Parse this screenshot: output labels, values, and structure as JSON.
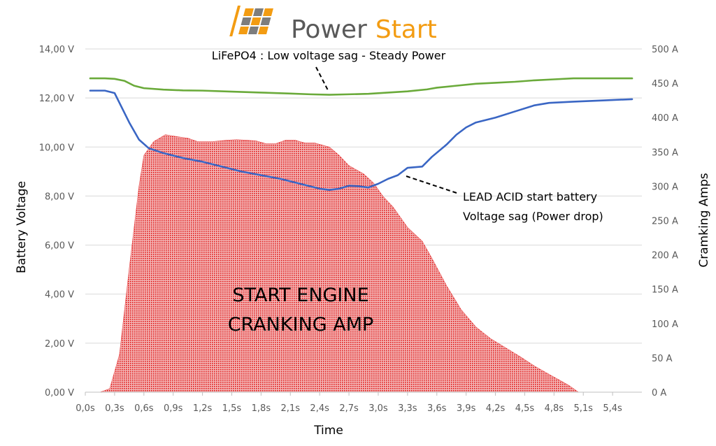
{
  "brand": {
    "name_part1": "Power",
    "name_part2": "Start",
    "name_part1_color": "#595959",
    "name_part2_color": "#f39c12",
    "icon": "grid-logo-icon"
  },
  "chart_data": {
    "type": "line+area",
    "xlabel": "Time",
    "ylabel_left": "Battery Voltage",
    "ylabel_right": "Cramking Amps",
    "x_range": [
      0,
      5.7
    ],
    "ylim_left": [
      0,
      14
    ],
    "ylim_right": [
      0,
      500
    ],
    "x_ticks": [
      {
        "v": 0.0,
        "label": "0,0s"
      },
      {
        "v": 0.3,
        "label": "0,3s"
      },
      {
        "v": 0.6,
        "label": "0,6s"
      },
      {
        "v": 0.9,
        "label": "0,9s"
      },
      {
        "v": 1.2,
        "label": "1,2s"
      },
      {
        "v": 1.5,
        "label": "1,5s"
      },
      {
        "v": 1.8,
        "label": "1,8s"
      },
      {
        "v": 2.1,
        "label": "2,1s"
      },
      {
        "v": 2.4,
        "label": "2,4s"
      },
      {
        "v": 2.7,
        "label": "2,7s"
      },
      {
        "v": 3.0,
        "label": "3,0s"
      },
      {
        "v": 3.3,
        "label": "3,3s"
      },
      {
        "v": 3.6,
        "label": "3,6s"
      },
      {
        "v": 3.9,
        "label": "3,9s"
      },
      {
        "v": 4.2,
        "label": "4,2s"
      },
      {
        "v": 4.5,
        "label": "4,5s"
      },
      {
        "v": 4.8,
        "label": "4,8s"
      },
      {
        "v": 5.1,
        "label": "5,1s"
      },
      {
        "v": 5.4,
        "label": "5,4s"
      }
    ],
    "y_ticks_left": [
      {
        "v": 0,
        "label": "0,00 V"
      },
      {
        "v": 2,
        "label": "2,00 V"
      },
      {
        "v": 4,
        "label": "4,00 V"
      },
      {
        "v": 6,
        "label": "6,00 V"
      },
      {
        "v": 8,
        "label": "8,00 V"
      },
      {
        "v": 10,
        "label": "10,00 V"
      },
      {
        "v": 12,
        "label": "12,00 V"
      },
      {
        "v": 14,
        "label": "14,00 V"
      }
    ],
    "y_ticks_right": [
      {
        "v": 0,
        "label": "0 A"
      },
      {
        "v": 50,
        "label": "50 A"
      },
      {
        "v": 100,
        "label": "100 A"
      },
      {
        "v": 150,
        "label": "150 A"
      },
      {
        "v": 200,
        "label": "200 A"
      },
      {
        "v": 250,
        "label": "250 A"
      },
      {
        "v": 300,
        "label": "300 A"
      },
      {
        "v": 350,
        "label": "350 A"
      },
      {
        "v": 400,
        "label": "400 A"
      },
      {
        "v": 450,
        "label": "450 A"
      },
      {
        "v": 500,
        "label": "500 A"
      }
    ],
    "series": [
      {
        "name": "Cranking Amps",
        "axis": "right",
        "kind": "area",
        "color": "#e03030",
        "x": [
          0.15,
          0.25,
          0.35,
          0.45,
          0.55,
          0.6,
          0.7,
          0.82,
          0.95,
          1.05,
          1.15,
          1.3,
          1.45,
          1.55,
          1.65,
          1.75,
          1.85,
          1.95,
          2.05,
          2.15,
          2.25,
          2.35,
          2.5,
          2.6,
          2.7,
          2.85,
          2.95,
          3.05,
          3.15,
          3.3,
          3.45,
          3.55,
          3.7,
          3.85,
          4.0,
          4.15,
          4.3,
          4.45,
          4.6,
          4.75,
          4.85,
          4.95,
          5.05
        ],
        "values": [
          0,
          5,
          55,
          180,
          300,
          345,
          365,
          375,
          372,
          370,
          365,
          365,
          367,
          368,
          367,
          366,
          362,
          362,
          367,
          367,
          363,
          363,
          357,
          345,
          330,
          318,
          305,
          285,
          270,
          240,
          220,
          195,
          155,
          120,
          95,
          78,
          65,
          52,
          38,
          26,
          18,
          10,
          0
        ]
      },
      {
        "name": "LiFePO4",
        "axis": "left",
        "kind": "line",
        "color": "#6aaa3a",
        "x": [
          0.05,
          0.2,
          0.3,
          0.4,
          0.5,
          0.6,
          0.8,
          1.0,
          1.2,
          1.5,
          1.8,
          2.1,
          2.3,
          2.5,
          2.7,
          2.9,
          3.1,
          3.3,
          3.5,
          3.6,
          3.8,
          4.0,
          4.2,
          4.4,
          4.6,
          4.8,
          5.0,
          5.3,
          5.6
        ],
        "values": [
          12.8,
          12.8,
          12.78,
          12.7,
          12.5,
          12.4,
          12.34,
          12.31,
          12.3,
          12.26,
          12.22,
          12.18,
          12.15,
          12.13,
          12.15,
          12.17,
          12.22,
          12.27,
          12.35,
          12.42,
          12.5,
          12.58,
          12.62,
          12.66,
          12.72,
          12.76,
          12.8,
          12.8,
          12.8
        ]
      },
      {
        "name": "LEAD ACID",
        "axis": "left",
        "kind": "line",
        "color": "#3a66c4",
        "x": [
          0.05,
          0.2,
          0.3,
          0.35,
          0.45,
          0.55,
          0.65,
          0.8,
          1.0,
          1.2,
          1.4,
          1.6,
          1.8,
          2.0,
          2.2,
          2.4,
          2.5,
          2.6,
          2.7,
          2.8,
          2.9,
          3.0,
          3.1,
          3.2,
          3.3,
          3.45,
          3.55,
          3.7,
          3.8,
          3.9,
          4.0,
          4.2,
          4.4,
          4.6,
          4.75,
          5.0,
          5.3,
          5.6
        ],
        "values": [
          12.3,
          12.3,
          12.2,
          11.8,
          11.0,
          10.3,
          9.95,
          9.75,
          9.55,
          9.4,
          9.2,
          9.0,
          8.85,
          8.7,
          8.5,
          8.3,
          8.25,
          8.3,
          8.42,
          8.4,
          8.35,
          8.5,
          8.7,
          8.85,
          9.15,
          9.2,
          9.6,
          10.1,
          10.5,
          10.8,
          11.0,
          11.2,
          11.45,
          11.7,
          11.8,
          11.85,
          11.9,
          11.95
        ]
      }
    ],
    "annotations": [
      {
        "text": "LiFePO4 : Low voltage sag - Steady Power"
      },
      {
        "text": "LEAD ACID start battery"
      },
      {
        "text": "Voltage sag (Power drop)"
      },
      {
        "text": "START ENGINE"
      },
      {
        "text": "CRANKING AMP"
      }
    ]
  }
}
